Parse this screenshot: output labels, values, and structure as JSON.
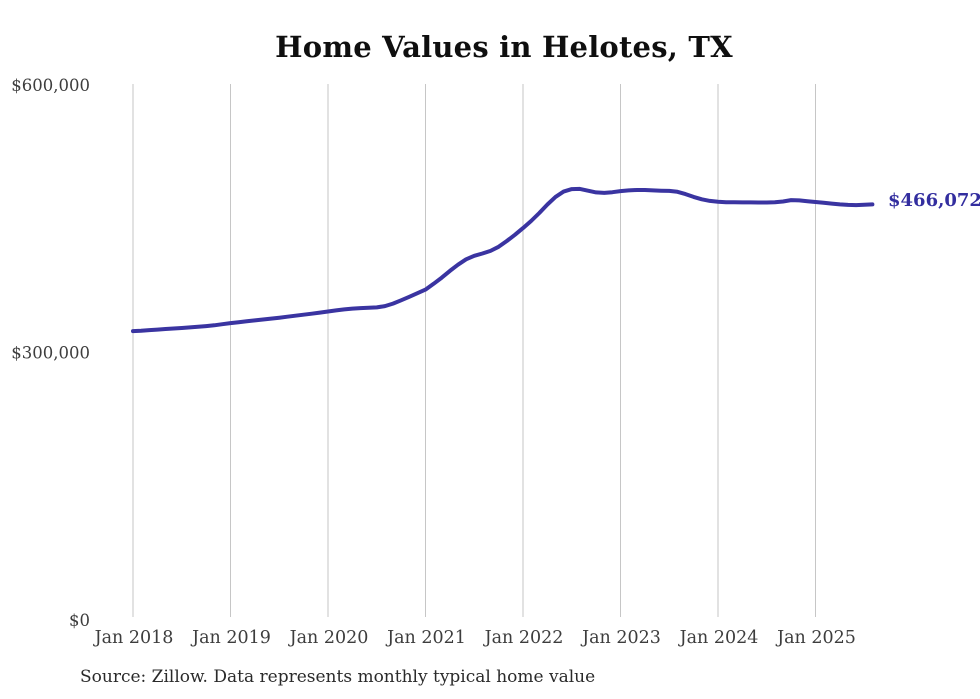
{
  "page": {
    "background": "#ffffff"
  },
  "chart_data": {
    "type": "line",
    "title": "Home Values in Helotes, TX",
    "source_note": "Source: Zillow. Data represents monthly typical home value",
    "end_label": "$466,072",
    "end_value": 466072,
    "x_start": "Jan 2018",
    "x_end": "Aug 2025",
    "x_interval": "monthly",
    "x_tick_labels": [
      "Jan 2018",
      "Jan 2019",
      "Jan 2020",
      "Jan 2021",
      "Jan 2022",
      "Jan 2023",
      "Jan 2024",
      "Jan 2025"
    ],
    "y_ticks": [
      {
        "label": "$600,000",
        "value": 600000
      },
      {
        "label": "$300,000",
        "value": 300000
      },
      {
        "label": "$0",
        "value": 0
      }
    ],
    "ylim": [
      0,
      600000
    ],
    "grid": "vertical-only",
    "legend": "none",
    "colors": {
      "line": "#3a34a1",
      "end_label": "#332e9f",
      "grid": "#c6c6c6",
      "axis_text": "#3d3d3d",
      "title": "#0f0f0f",
      "source_text": "#2a2a2a",
      "background": "#ffffff"
    },
    "series": [
      {
        "name": "Typical home value",
        "values": [
          324000,
          324500,
          325100,
          325700,
          326300,
          326900,
          327500,
          328100,
          328800,
          329600,
          330500,
          331700,
          333000,
          334000,
          335000,
          336000,
          337000,
          338000,
          339000,
          340200,
          341300,
          342400,
          343500,
          344800,
          346000,
          347200,
          348300,
          349200,
          349800,
          350100,
          350600,
          352000,
          354800,
          358500,
          362500,
          366500,
          370500,
          377000,
          384000,
          391500,
          398500,
          404500,
          408500,
          411000,
          414000,
          418500,
          425000,
          432000,
          439500,
          447500,
          456500,
          466000,
          474500,
          480500,
          483300,
          483500,
          481500,
          479500,
          479000,
          479800,
          481000,
          481800,
          482200,
          482200,
          481800,
          481500,
          481200,
          480200,
          477600,
          474500,
          471800,
          470000,
          469000,
          468600,
          468400,
          468300,
          468300,
          468200,
          468200,
          468400,
          469300,
          470900,
          470600,
          469700,
          468800,
          467900,
          467000,
          466100,
          465500,
          465300,
          465600,
          466072
        ]
      }
    ]
  }
}
